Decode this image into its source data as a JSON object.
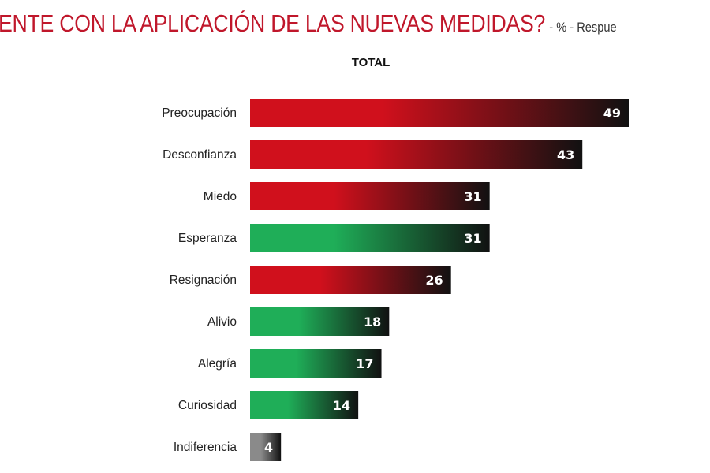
{
  "title": "ENTE CON LA APLICACIÓN DE LAS NUEVAS MEDIDAS?",
  "title_suffix": "- % - Respue",
  "chart_data": {
    "type": "bar",
    "orientation": "horizontal",
    "title": "TOTAL",
    "categories": [
      "Preocupación",
      "Desconfianza",
      "Miedo",
      "Esperanza",
      "Resignación",
      "Alivio",
      "Alegría",
      "Curiosidad",
      "Indiferencia"
    ],
    "values": [
      49,
      43,
      31,
      31,
      26,
      18,
      17,
      14,
      4
    ],
    "sentiment": [
      "negative",
      "negative",
      "negative",
      "positive",
      "negative",
      "positive",
      "positive",
      "positive",
      "neutral"
    ],
    "colors": {
      "negative": "#d0101c",
      "positive": "#1fae58",
      "neutral": "#8a8a8a",
      "gradient_end": "#111111"
    },
    "xlim": [
      0,
      49
    ],
    "grid": false,
    "data_labels": true
  }
}
